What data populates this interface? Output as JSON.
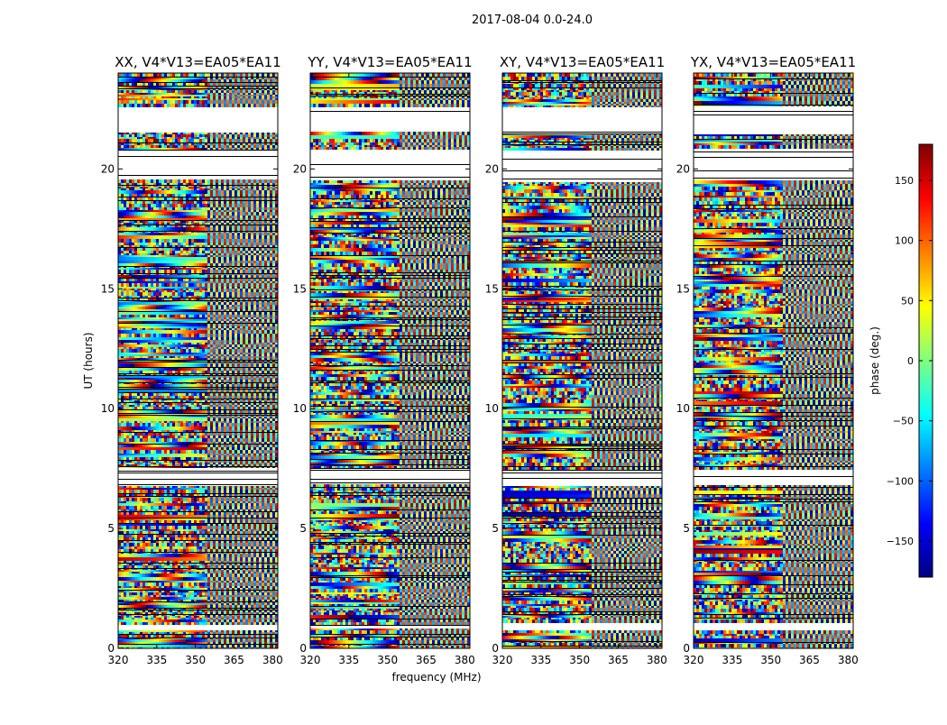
{
  "chart_data": {
    "type": "heatmap",
    "title": "2017-08-04 0.0-24.0",
    "xlabel": "frequency (MHz)",
    "ylabel": "UT (hours)",
    "xlim": [
      320,
      382
    ],
    "ylim": [
      0,
      24
    ],
    "x_ticks": [
      320,
      335,
      350,
      365,
      380
    ],
    "y_ticks": [
      0,
      5,
      10,
      15,
      20
    ],
    "panels": [
      {
        "title": "XX, V4*V13=EA05*EA11"
      },
      {
        "title": "YY, V4*V13=EA05*EA11"
      },
      {
        "title": "XY, V4*V13=EA05*EA11"
      },
      {
        "title": "YX, V4*V13=EA05*EA11"
      }
    ],
    "colorbar": {
      "label": "phase (deg.)",
      "range": [
        -180,
        180
      ],
      "ticks": [
        150,
        100,
        50,
        0,
        -50,
        -100,
        -150
      ],
      "tick_labels": [
        "150",
        "100",
        "50",
        "0",
        "−50",
        "−100",
        "−150"
      ],
      "colormap": "jet",
      "stops": [
        "#00007f",
        "#0000ff",
        "#007fff",
        "#00ffff",
        "#7fff7f",
        "#ffff00",
        "#ff7f00",
        "#ff0000",
        "#7f0000"
      ]
    },
    "blank_ut_ranges": [
      [
        21.5,
        22.4
      ],
      [
        19.5,
        20.8
      ],
      [
        6.8,
        7.5
      ],
      [
        0.8,
        1.0
      ]
    ]
  }
}
